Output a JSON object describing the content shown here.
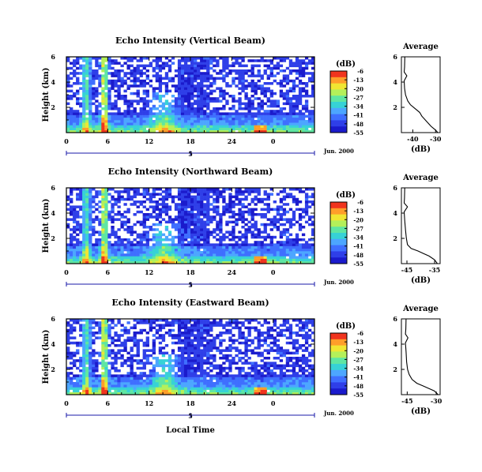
{
  "chart_data": {
    "type": "heatmap",
    "colors": {
      "colormap": [
        "#1b1bcc",
        "#2f3fe8",
        "#3f6fff",
        "#4da6ff",
        "#37d2d6",
        "#5fe6a2",
        "#b4f05a",
        "#f0e632",
        "#ff9e2a",
        "#f0341e"
      ],
      "axis": "#000000",
      "date_line": "#1a1aa8"
    },
    "shared": {
      "x_axis": {
        "label": "Local Time",
        "ticks": [
          "0",
          "6",
          "12",
          "18",
          "24",
          "0"
        ],
        "range": [
          0,
          36
        ]
      },
      "date_axis": {
        "ticks": [
          "5"
        ],
        "suffix": "Jun. 2000"
      },
      "y_axis": {
        "label": "Height (km)",
        "ticks": [
          "2",
          "4",
          "6"
        ],
        "range": [
          0,
          6
        ]
      },
      "colorbar": {
        "label": "(dB)",
        "ticks": [
          "-6",
          "-13",
          "-20",
          "-27",
          "-34",
          "-41",
          "-48",
          "-55"
        ],
        "range": [
          -55,
          -6
        ]
      }
    },
    "panels": [
      {
        "title": "Echo Intensity (Vertical Beam)",
        "profile": {
          "title": "Average",
          "xlabel": "(dB)",
          "xticks": [
            "-40",
            "-30"
          ],
          "xlim": [
            -45,
            -28
          ],
          "points": [
            [
              -43.5,
              6.0
            ],
            [
              -43.6,
              5.2
            ],
            [
              -43.8,
              4.8
            ],
            [
              -42.6,
              4.5
            ],
            [
              -43.8,
              4.1
            ],
            [
              -43.6,
              3.5
            ],
            [
              -43.2,
              3.0
            ],
            [
              -42.2,
              2.5
            ],
            [
              -41.0,
              2.2
            ],
            [
              -39.0,
              1.9
            ],
            [
              -37.0,
              1.6
            ],
            [
              -36.0,
              1.3
            ],
            [
              -34.0,
              0.9
            ],
            [
              -32.0,
              0.5
            ],
            [
              -30.0,
              0.2
            ],
            [
              -29.0,
              0.0
            ]
          ]
        }
      },
      {
        "title": "Echo Intensity (Northward Beam)",
        "profile": {
          "title": "Average",
          "xlabel": "(dB)",
          "xticks": [
            "-45",
            "-35"
          ],
          "xlim": [
            -47,
            -33
          ],
          "points": [
            [
              -45.8,
              6.0
            ],
            [
              -45.9,
              5.2
            ],
            [
              -46.0,
              4.8
            ],
            [
              -44.8,
              4.5
            ],
            [
              -46.0,
              4.1
            ],
            [
              -45.8,
              3.4
            ],
            [
              -45.5,
              2.6
            ],
            [
              -45.2,
              2.0
            ],
            [
              -44.8,
              1.5
            ],
            [
              -43.5,
              1.2
            ],
            [
              -41.0,
              1.0
            ],
            [
              -39.0,
              0.8
            ],
            [
              -37.0,
              0.6
            ],
            [
              -35.0,
              0.3
            ],
            [
              -34.0,
              0.0
            ]
          ]
        }
      },
      {
        "title": "Echo Intensity (Eastward Beam)",
        "profile": {
          "title": "Average",
          "xlabel": "(dB)",
          "xticks": [
            "-45",
            "-30"
          ],
          "xlim": [
            -48,
            -28
          ],
          "points": [
            [
              -45.6,
              6.0
            ],
            [
              -45.7,
              5.2
            ],
            [
              -45.9,
              4.8
            ],
            [
              -44.6,
              4.5
            ],
            [
              -45.9,
              4.1
            ],
            [
              -45.6,
              3.4
            ],
            [
              -45.3,
              2.6
            ],
            [
              -44.8,
              2.0
            ],
            [
              -44.0,
              1.6
            ],
            [
              -42.5,
              1.2
            ],
            [
              -40.0,
              0.9
            ],
            [
              -37.0,
              0.7
            ],
            [
              -34.0,
              0.5
            ],
            [
              -31.0,
              0.3
            ],
            [
              -29.0,
              0.0
            ]
          ]
        }
      }
    ]
  }
}
